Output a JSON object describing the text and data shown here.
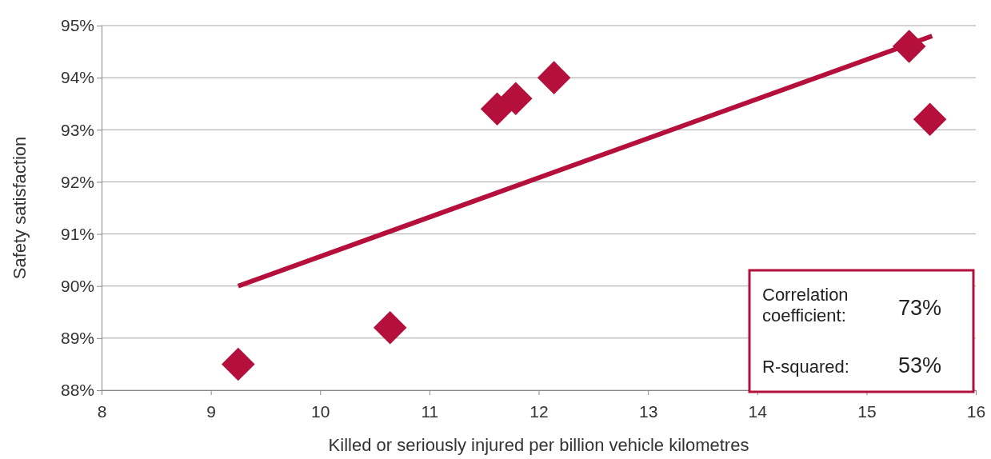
{
  "chart_data": {
    "type": "scatter",
    "xlabel": "Killed or seriously injured per billion vehicle kilometres",
    "ylabel": "Safety satisfaction",
    "xlim": [
      8,
      16
    ],
    "xticks": [
      8,
      9,
      10,
      11,
      12,
      13,
      14,
      15,
      16
    ],
    "ylim": [
      88,
      95
    ],
    "yticks": [
      {
        "value": 88,
        "label": "88%"
      },
      {
        "value": 89,
        "label": "89%"
      },
      {
        "value": 90,
        "label": "90%"
      },
      {
        "value": 91,
        "label": "91%"
      },
      {
        "value": 92,
        "label": "92%"
      },
      {
        "value": 93,
        "label": "93%"
      },
      {
        "value": 94,
        "label": "94%"
      },
      {
        "value": 95,
        "label": "95%"
      }
    ],
    "grid": "y",
    "series": [
      {
        "color": "#b5103c",
        "marker": "diamond",
        "x": [
          9.25,
          10.64,
          11.62,
          11.79,
          12.14,
          15.39,
          15.58
        ],
        "values": [
          88.5,
          89.2,
          93.4,
          93.6,
          94.0,
          94.6,
          93.2
        ]
      },
      {
        "type": "line",
        "color": "#b5103c",
        "marker": "none",
        "line_style": "solid",
        "x": [
          9.25,
          15.6
        ],
        "values": [
          90.0,
          94.8
        ]
      }
    ],
    "annotations": [
      "Correlation coefficient: 73%",
      "R-squared: 53%"
    ]
  }
}
